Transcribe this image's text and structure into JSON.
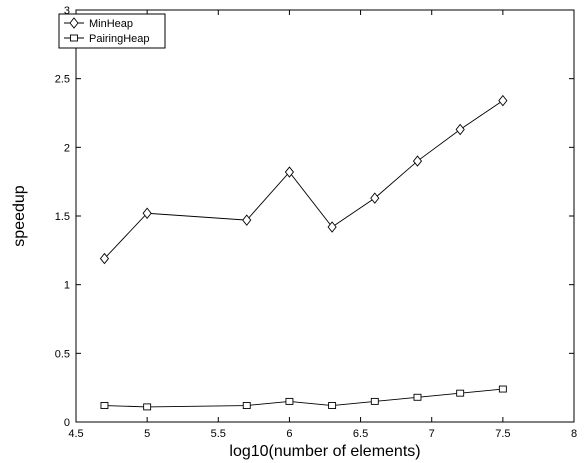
{
  "chart_data": {
    "type": "line",
    "title": "",
    "xlabel": "log10(number of elements)",
    "ylabel": "speedup",
    "xlim": [
      4.5,
      8
    ],
    "ylim": [
      0,
      3
    ],
    "x_ticks": [
      "4.5",
      "5",
      "5.5",
      "6",
      "6.5",
      "7",
      "7.5",
      "8"
    ],
    "y_ticks": [
      "0",
      "0.5",
      "1",
      "1.5",
      "2",
      "2.5",
      "3"
    ],
    "grid": false,
    "legend_position": "top-left",
    "series": [
      {
        "name": "MinHeap",
        "marker": "diamond",
        "color": "#000000",
        "x": [
          4.7,
          5.0,
          5.7,
          6.0,
          6.3,
          6.6,
          6.9,
          7.2,
          7.5
        ],
        "y": [
          1.19,
          1.52,
          1.47,
          1.82,
          1.42,
          1.63,
          1.9,
          2.13,
          2.34
        ]
      },
      {
        "name": "PairingHeap",
        "marker": "square",
        "color": "#000000",
        "x": [
          4.7,
          5.0,
          5.7,
          6.0,
          6.3,
          6.6,
          6.9,
          7.2,
          7.5
        ],
        "y": [
          0.12,
          0.11,
          0.12,
          0.15,
          0.12,
          0.15,
          0.18,
          0.21,
          0.24
        ]
      }
    ]
  }
}
